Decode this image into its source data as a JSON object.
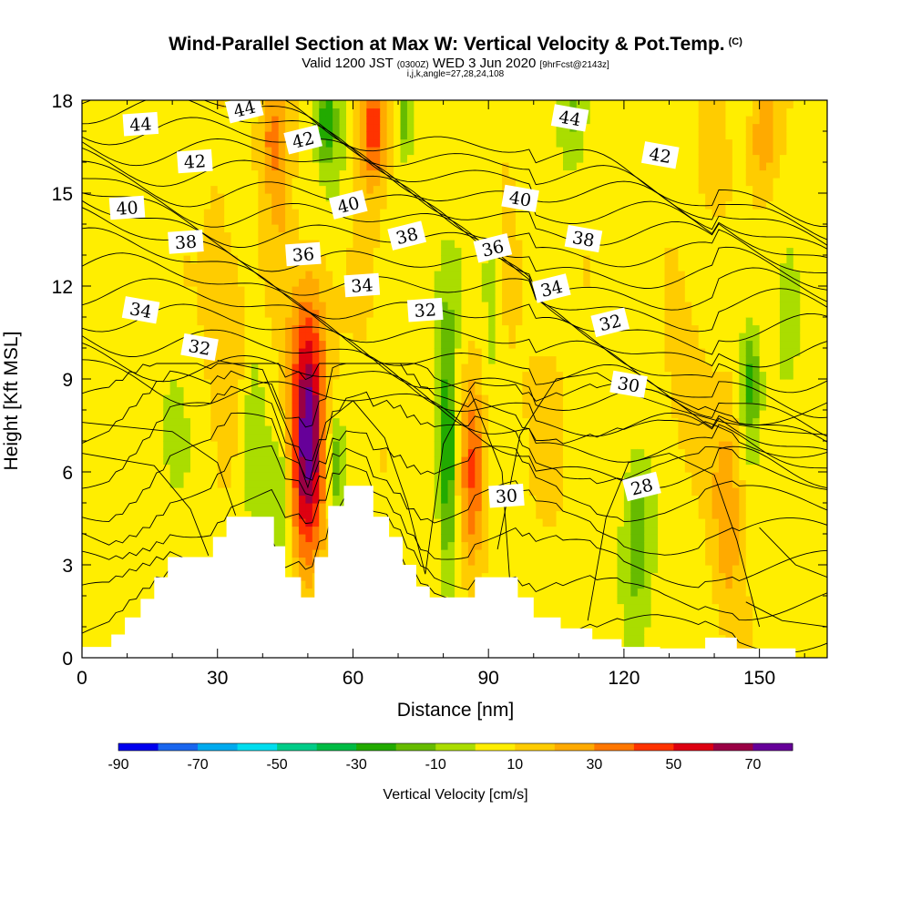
{
  "chart_data": {
    "type": "heatmap",
    "title": "Wind-Parallel Section at Max W: Vertical Velocity & Pot.Temp.",
    "title_mark": "(C)",
    "subtitle_main": "Valid 1200 JST",
    "subtitle_z": "(0300Z)",
    "subtitle_date": "WED 3 Jun 2020",
    "subtitle_fcst": "[9hrFcst@2143z]",
    "subline": "i,j,k,angle=27,28,24,108",
    "xlabel": "Distance [nm]",
    "ylabel": "Height [Kft MSL]",
    "colorbar_label": "Vertical Velocity [cm/s]",
    "xlim": [
      0,
      165
    ],
    "ylim": [
      0,
      18
    ],
    "x_ticks": [
      0,
      30,
      60,
      90,
      120,
      150
    ],
    "y_ticks": [
      0,
      3,
      6,
      9,
      12,
      15,
      18
    ],
    "colorbar_ticks": [
      -90,
      -70,
      -50,
      -30,
      -10,
      10,
      30,
      50,
      70
    ],
    "colorbar_levels": [
      -90,
      -80,
      -70,
      -60,
      -50,
      -40,
      -30,
      -20,
      -10,
      0,
      10,
      20,
      30,
      40,
      50,
      60,
      70
    ],
    "colorbar_colors": [
      "#0000ee",
      "#1a66ee",
      "#00aaee",
      "#00ddee",
      "#00cc88",
      "#00bb44",
      "#22aa00",
      "#66bb00",
      "#aadd00",
      "#ffee00",
      "#ffcc00",
      "#ffaa00",
      "#ff7700",
      "#ff3300",
      "#dd0011",
      "#990044",
      "#660099"
    ],
    "velocity_updrafts": [
      {
        "x": 50,
        "z": 6.8,
        "peak": 72
      },
      {
        "x": 64,
        "z": 17.2,
        "peak": 40
      },
      {
        "x": 86,
        "z": 6.0,
        "peak": 38
      },
      {
        "x": 143,
        "z": 4.5,
        "peak": 28
      },
      {
        "x": 42,
        "z": 17.0,
        "peak": 32
      },
      {
        "x": 151,
        "z": 17.0,
        "peak": 30
      },
      {
        "x": 30,
        "z": 12.0,
        "peak": 18
      }
    ],
    "velocity_downdrafts": [
      {
        "x": 81,
        "z": 6.5,
        "peak": -32
      },
      {
        "x": 54,
        "z": 17.3,
        "peak": -28
      },
      {
        "x": 148,
        "z": 9.0,
        "peak": -25
      },
      {
        "x": 123,
        "z": 4.0,
        "peak": -20
      },
      {
        "x": 108,
        "z": 17.5,
        "peak": -18
      }
    ],
    "theta_contours": [
      28,
      30,
      32,
      34,
      36,
      38,
      40,
      42,
      44
    ],
    "contour_labels": [
      {
        "text": "44",
        "x": 13,
        "z": 17.2
      },
      {
        "text": "44",
        "x": 36,
        "z": 17.7
      },
      {
        "text": "44",
        "x": 108,
        "z": 17.4
      },
      {
        "text": "42",
        "x": 25,
        "z": 16.0
      },
      {
        "text": "42",
        "x": 49,
        "z": 16.7
      },
      {
        "text": "42",
        "x": 128,
        "z": 16.2
      },
      {
        "text": "40",
        "x": 10,
        "z": 14.5
      },
      {
        "text": "40",
        "x": 59,
        "z": 14.6
      },
      {
        "text": "40",
        "x": 97,
        "z": 14.8
      },
      {
        "text": "38",
        "x": 23,
        "z": 13.4
      },
      {
        "text": "38",
        "x": 72,
        "z": 13.6
      },
      {
        "text": "38",
        "x": 111,
        "z": 13.5
      },
      {
        "text": "36",
        "x": 49,
        "z": 13.0
      },
      {
        "text": "36",
        "x": 91,
        "z": 13.2
      },
      {
        "text": "34",
        "x": 13,
        "z": 11.2
      },
      {
        "text": "34",
        "x": 62,
        "z": 12.0
      },
      {
        "text": "34",
        "x": 104,
        "z": 11.9
      },
      {
        "text": "32",
        "x": 26,
        "z": 10.0
      },
      {
        "text": "32",
        "x": 76,
        "z": 11.2
      },
      {
        "text": "32",
        "x": 117,
        "z": 10.8
      },
      {
        "text": "30",
        "x": 121,
        "z": 8.8
      },
      {
        "text": "30",
        "x": 94,
        "z": 5.2
      },
      {
        "text": "28",
        "x": 124,
        "z": 5.5
      }
    ],
    "terrain": [
      [
        0,
        0.35
      ],
      [
        6.5,
        0.35
      ],
      [
        6.5,
        0.75
      ],
      [
        9.5,
        0.75
      ],
      [
        9.5,
        1.3
      ],
      [
        13,
        1.3
      ],
      [
        13,
        1.9
      ],
      [
        16,
        1.9
      ],
      [
        16,
        2.6
      ],
      [
        19,
        2.6
      ],
      [
        19,
        3.25
      ],
      [
        29,
        3.25
      ],
      [
        29,
        3.9
      ],
      [
        32,
        3.9
      ],
      [
        32,
        4.55
      ],
      [
        42.5,
        4.55
      ],
      [
        42.5,
        3.6
      ],
      [
        45,
        3.6
      ],
      [
        45,
        2.6
      ],
      [
        48.5,
        2.6
      ],
      [
        48.5,
        1.95
      ],
      [
        51.5,
        1.95
      ],
      [
        51.5,
        3.25
      ],
      [
        54.5,
        3.25
      ],
      [
        54.5,
        4.9
      ],
      [
        58,
        4.9
      ],
      [
        58,
        5.55
      ],
      [
        64.5,
        5.55
      ],
      [
        64.5,
        4.55
      ],
      [
        68,
        4.55
      ],
      [
        68,
        3.9
      ],
      [
        71,
        3.9
      ],
      [
        71,
        3.0
      ],
      [
        74,
        3.0
      ],
      [
        74,
        2.3
      ],
      [
        77,
        2.3
      ],
      [
        77,
        1.95
      ],
      [
        87,
        1.95
      ],
      [
        87,
        2.6
      ],
      [
        96.5,
        2.6
      ],
      [
        96.5,
        1.95
      ],
      [
        100,
        1.95
      ],
      [
        100,
        1.3
      ],
      [
        106,
        1.3
      ],
      [
        106,
        0.95
      ],
      [
        113,
        0.95
      ],
      [
        113,
        0.6
      ],
      [
        119.5,
        0.6
      ],
      [
        119.5,
        0.35
      ],
      [
        128,
        0.35
      ],
      [
        128,
        0.3
      ],
      [
        138,
        0.3
      ],
      [
        138,
        0.65
      ],
      [
        145,
        0.65
      ],
      [
        145,
        0.3
      ],
      [
        158,
        0.3
      ]
    ]
  }
}
